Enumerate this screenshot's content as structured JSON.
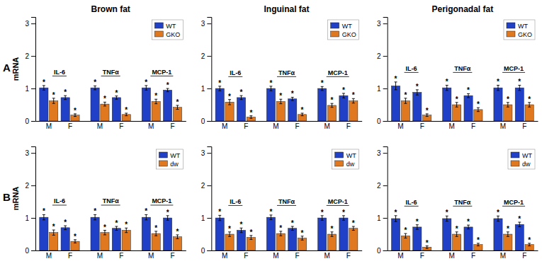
{
  "chart_data": [
    {
      "type": "bar",
      "title": "Brown fat",
      "ylabel": "mRNA",
      "row_label": "A",
      "categories": [
        "M",
        "F",
        "M",
        "F",
        "M",
        "F"
      ],
      "groups": [
        "IL-6",
        "TNFα",
        "MCP-1"
      ],
      "series": [
        {
          "name": "WT",
          "color": "#2040c8",
          "values": [
            1.02,
            0.72,
            1.02,
            0.72,
            1.02,
            0.95
          ],
          "errors": [
            0.07,
            0.06,
            0.06,
            0.05,
            0.07,
            0.05
          ],
          "annotations": [
            "*",
            "*",
            "*",
            "*",
            "*",
            "*"
          ]
        },
        {
          "name": "GKO",
          "color": "#e07820",
          "values": [
            0.62,
            0.18,
            0.52,
            0.2,
            0.6,
            0.42
          ],
          "errors": [
            0.08,
            0.04,
            0.06,
            0.04,
            0.07,
            0.06
          ],
          "annotations": [
            "*",
            "*",
            "*",
            "*",
            "*",
            "*"
          ]
        }
      ],
      "ylim": [
        0,
        3.2
      ],
      "yticks": [
        0,
        1,
        2,
        3
      ],
      "legend": "upper right",
      "grid": false
    },
    {
      "type": "bar",
      "title": "Inguinal fat",
      "categories": [
        "M",
        "F",
        "M",
        "F",
        "M",
        "F"
      ],
      "groups": [
        "IL-6",
        "TNFα",
        "MCP-1"
      ],
      "series": [
        {
          "name": "WT",
          "color": "#2040c8",
          "values": [
            1.0,
            0.72,
            1.0,
            0.68,
            1.0,
            0.78
          ],
          "errors": [
            0.07,
            0.06,
            0.07,
            0.05,
            0.06,
            0.07
          ],
          "annotations": [
            "*",
            "*",
            "*",
            "*",
            "*",
            "*"
          ]
        },
        {
          "name": "GKO",
          "color": "#e07820",
          "values": [
            0.58,
            0.12,
            0.6,
            0.2,
            0.48,
            0.62
          ],
          "errors": [
            0.08,
            0.04,
            0.07,
            0.04,
            0.06,
            0.07
          ],
          "annotations": [
            "*",
            "*",
            "*",
            "*",
            "*",
            "*"
          ]
        }
      ],
      "ylim": [
        0,
        3.2
      ],
      "yticks": [
        0,
        1,
        2,
        3
      ],
      "legend": "upper right",
      "grid": false
    },
    {
      "type": "bar",
      "title": "Perigonadal fat",
      "categories": [
        "M",
        "F",
        "M",
        "F",
        "M",
        "F"
      ],
      "groups": [
        "IL-6",
        "TNFα",
        "MCP-1"
      ],
      "series": [
        {
          "name": "WT",
          "color": "#2040c8",
          "values": [
            1.08,
            0.88,
            1.02,
            0.78,
            1.02,
            1.02
          ],
          "errors": [
            0.12,
            0.08,
            0.08,
            0.06,
            0.08,
            0.08
          ],
          "annotations": [
            "*",
            "*",
            "*",
            "*",
            "*",
            "*"
          ]
        },
        {
          "name": "GKO",
          "color": "#e07820",
          "values": [
            0.62,
            0.18,
            0.5,
            0.35,
            0.5,
            0.5
          ],
          "errors": [
            0.08,
            0.04,
            0.07,
            0.06,
            0.07,
            0.07
          ],
          "annotations": [
            "*",
            "*",
            "*",
            "*",
            "*",
            "*"
          ]
        }
      ],
      "ylim": [
        0,
        3.2
      ],
      "yticks": [
        0,
        1,
        2,
        3
      ],
      "legend": "upper right",
      "grid": false
    },
    {
      "type": "bar",
      "ylabel": "mRNA",
      "row_label": "B",
      "categories": [
        "M",
        "F",
        "M",
        "F",
        "M",
        "F"
      ],
      "groups": [
        "IL-6",
        "TNFα",
        "MCP-1"
      ],
      "series": [
        {
          "name": "WT",
          "color": "#2040c8",
          "values": [
            1.02,
            0.7,
            1.02,
            0.68,
            1.02,
            1.0
          ],
          "errors": [
            0.08,
            0.06,
            0.08,
            0.06,
            0.08,
            0.07
          ],
          "annotations": [
            "*",
            "*",
            "*",
            "*",
            "*",
            "*"
          ]
        },
        {
          "name": "dw",
          "color": "#e07820",
          "values": [
            0.55,
            0.28,
            0.55,
            0.62,
            0.52,
            0.42
          ],
          "errors": [
            0.08,
            0.05,
            0.07,
            0.07,
            0.07,
            0.06
          ],
          "annotations": [
            "*",
            "*",
            "*",
            "*",
            "*",
            "*"
          ]
        }
      ],
      "ylim": [
        0,
        3.2
      ],
      "yticks": [
        0,
        1,
        2,
        3
      ],
      "legend": "upper right",
      "grid": false
    },
    {
      "type": "bar",
      "categories": [
        "M",
        "F",
        "M",
        "F",
        "M",
        "F"
      ],
      "groups": [
        "IL-6",
        "TNFα",
        "MCP-1"
      ],
      "series": [
        {
          "name": "WT",
          "color": "#2040c8",
          "values": [
            1.0,
            0.62,
            1.02,
            0.68,
            1.0,
            1.0
          ],
          "errors": [
            0.08,
            0.07,
            0.07,
            0.06,
            0.07,
            0.07
          ],
          "annotations": [
            "*",
            "*",
            "*",
            "*",
            "*",
            "*"
          ]
        },
        {
          "name": "dw",
          "color": "#e07820",
          "values": [
            0.5,
            0.4,
            0.52,
            0.38,
            0.5,
            0.68
          ],
          "errors": [
            0.07,
            0.06,
            0.07,
            0.06,
            0.07,
            0.06
          ],
          "annotations": [
            "*",
            "*",
            "*",
            "*",
            "*",
            "*"
          ]
        }
      ],
      "ylim": [
        0,
        3.2
      ],
      "yticks": [
        0,
        1,
        2,
        3
      ],
      "legend": "upper right",
      "grid": false
    },
    {
      "type": "bar",
      "categories": [
        "M",
        "F",
        "M",
        "F",
        "M",
        "F"
      ],
      "groups": [
        "IL-6",
        "TNFα",
        "MCP-1"
      ],
      "series": [
        {
          "name": "WT",
          "color": "#2040c8",
          "values": [
            0.98,
            0.72,
            0.98,
            0.72,
            0.98,
            0.8
          ],
          "errors": [
            0.09,
            0.07,
            0.08,
            0.06,
            0.08,
            0.07
          ],
          "annotations": [
            "*",
            "*",
            "*",
            "*",
            "*",
            "*"
          ]
        },
        {
          "name": "dw",
          "color": "#e07820",
          "values": [
            0.45,
            0.1,
            0.5,
            0.18,
            0.5,
            0.18
          ],
          "errors": [
            0.07,
            0.04,
            0.07,
            0.04,
            0.07,
            0.04
          ],
          "annotations": [
            "*",
            "*",
            "*",
            "*",
            "*",
            "*"
          ]
        }
      ],
      "ylim": [
        0,
        3.2
      ],
      "yticks": [
        0,
        1,
        2,
        3
      ],
      "legend": "upper right",
      "grid": false
    }
  ]
}
